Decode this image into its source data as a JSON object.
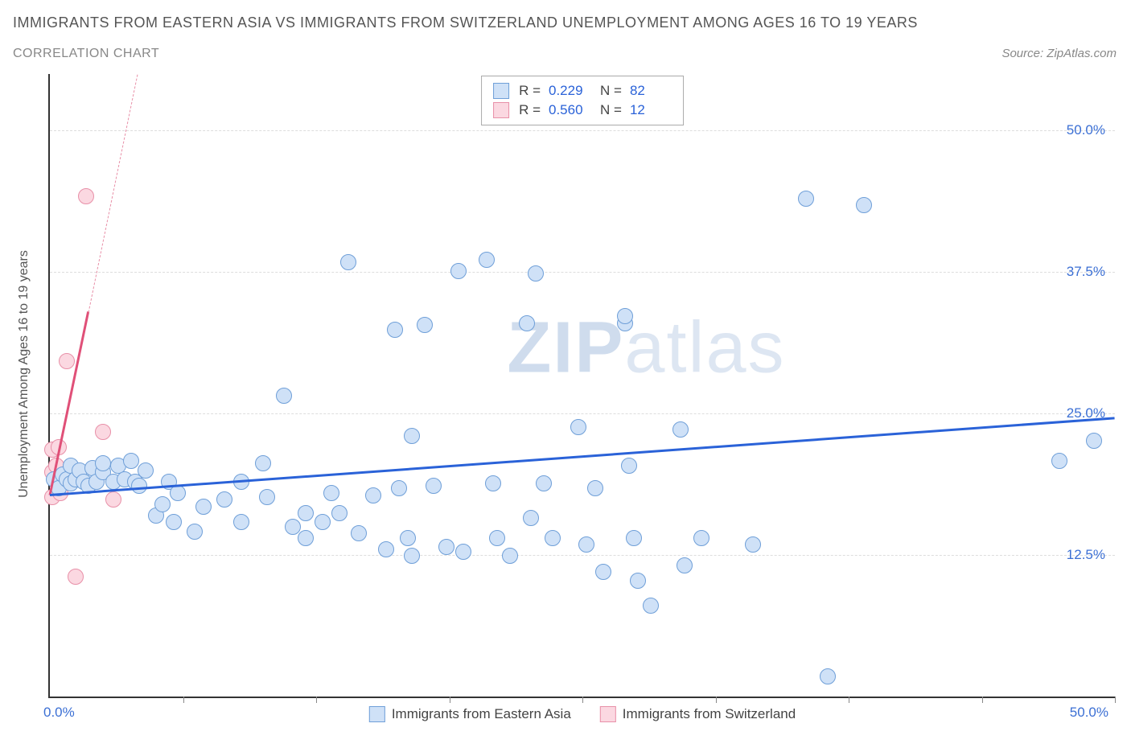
{
  "title_main": "IMMIGRANTS FROM EASTERN ASIA VS IMMIGRANTS FROM SWITZERLAND UNEMPLOYMENT AMONG AGES 16 TO 19 YEARS",
  "title_sub": "CORRELATION CHART",
  "source_label": "Source: ZipAtlas.com",
  "ylabel": "Unemployment Among Ages 16 to 19 years",
  "watermark_bold": "ZIP",
  "watermark_light": "atlas",
  "chart": {
    "type": "scatter",
    "xlim": [
      0,
      50
    ],
    "ylim": [
      0,
      55
    ],
    "xtick_label_min": "0.0%",
    "xtick_label_max": "50.0%",
    "xtick_positions": [
      0,
      6.25,
      12.5,
      18.75,
      25,
      31.25,
      37.5,
      43.75,
      50
    ],
    "ytick_labels": [
      {
        "v": 12.5,
        "t": "12.5%"
      },
      {
        "v": 25.0,
        "t": "25.0%"
      },
      {
        "v": 37.5,
        "t": "37.5%"
      },
      {
        "v": 50.0,
        "t": "50.0%"
      }
    ],
    "grid_color": "#dddddd",
    "background_color": "#ffffff",
    "marker_radius": 10,
    "marker_stroke_width": 1.5,
    "series_a": {
      "name": "Immigrants from Eastern Asia",
      "fill": "#cfe1f7",
      "stroke": "#6f9fd8",
      "R": "0.229",
      "N": "82",
      "trend": {
        "x1": 0,
        "y1": 17.8,
        "x2": 50,
        "y2": 24.6,
        "color": "#2a62d8",
        "width": 3
      },
      "points": [
        [
          0.2,
          19.2
        ],
        [
          0.4,
          18.4
        ],
        [
          0.6,
          19.6
        ],
        [
          0.8,
          19.2
        ],
        [
          1.0,
          18.8
        ],
        [
          1.0,
          20.4
        ],
        [
          1.2,
          19.2
        ],
        [
          1.4,
          20.0
        ],
        [
          1.6,
          19.0
        ],
        [
          1.8,
          18.6
        ],
        [
          2.0,
          20.2
        ],
        [
          2.2,
          19.0
        ],
        [
          2.5,
          19.8
        ],
        [
          2.5,
          20.6
        ],
        [
          3.0,
          19.0
        ],
        [
          3.2,
          20.4
        ],
        [
          3.5,
          19.2
        ],
        [
          3.8,
          20.8
        ],
        [
          4.0,
          19.0
        ],
        [
          4.2,
          18.6
        ],
        [
          4.5,
          20.0
        ],
        [
          5.0,
          16.0
        ],
        [
          5.3,
          17.0
        ],
        [
          5.6,
          19.0
        ],
        [
          5.8,
          15.4
        ],
        [
          6.0,
          18.0
        ],
        [
          6.8,
          14.6
        ],
        [
          7.2,
          16.8
        ],
        [
          8.2,
          17.4
        ],
        [
          9.0,
          19.0
        ],
        [
          9.0,
          15.4
        ],
        [
          10.0,
          20.6
        ],
        [
          10.2,
          17.6
        ],
        [
          11.0,
          26.6
        ],
        [
          11.4,
          15.0
        ],
        [
          12.0,
          14.0
        ],
        [
          12.0,
          16.2
        ],
        [
          12.8,
          15.4
        ],
        [
          13.2,
          18.0
        ],
        [
          13.6,
          16.2
        ],
        [
          14.0,
          38.4
        ],
        [
          14.5,
          14.4
        ],
        [
          15.2,
          17.8
        ],
        [
          15.8,
          13.0
        ],
        [
          16.2,
          32.4
        ],
        [
          16.4,
          18.4
        ],
        [
          16.8,
          14.0
        ],
        [
          17.0,
          12.4
        ],
        [
          17.0,
          23.0
        ],
        [
          17.6,
          32.8
        ],
        [
          18.0,
          18.6
        ],
        [
          18.6,
          13.2
        ],
        [
          19.2,
          37.6
        ],
        [
          19.4,
          12.8
        ],
        [
          20.5,
          38.6
        ],
        [
          20.8,
          18.8
        ],
        [
          21.0,
          14.0
        ],
        [
          21.6,
          12.4
        ],
        [
          22.4,
          33.0
        ],
        [
          22.6,
          15.8
        ],
        [
          22.8,
          37.4
        ],
        [
          23.2,
          18.8
        ],
        [
          23.6,
          14.0
        ],
        [
          24.8,
          23.8
        ],
        [
          25.2,
          13.4
        ],
        [
          25.6,
          18.4
        ],
        [
          26.0,
          11.0
        ],
        [
          27.0,
          33.0
        ],
        [
          27.0,
          33.6
        ],
        [
          27.2,
          20.4
        ],
        [
          27.4,
          14.0
        ],
        [
          27.6,
          10.2
        ],
        [
          28.2,
          8.0
        ],
        [
          29.6,
          23.6
        ],
        [
          29.8,
          11.6
        ],
        [
          30.6,
          14.0
        ],
        [
          33.0,
          13.4
        ],
        [
          35.5,
          44.0
        ],
        [
          36.5,
          1.8
        ],
        [
          38.2,
          43.4
        ],
        [
          47.4,
          20.8
        ],
        [
          49.0,
          22.6
        ]
      ]
    },
    "series_b": {
      "name": "Immigrants from Switzerland",
      "fill": "#fbd8e1",
      "stroke": "#e890a8",
      "R": "0.560",
      "N": "12",
      "trend_solid": {
        "x1": 0,
        "y1": 17.8,
        "x2": 1.8,
        "y2": 34.0,
        "color": "#e05078",
        "width": 3
      },
      "trend_dash": {
        "x1": 1.8,
        "y1": 34.0,
        "x2": 4.1,
        "y2": 55.0,
        "color": "#e890a8"
      },
      "points": [
        [
          0.1,
          17.6
        ],
        [
          0.1,
          19.8
        ],
        [
          0.1,
          21.8
        ],
        [
          0.3,
          19.2
        ],
        [
          0.3,
          20.4
        ],
        [
          0.4,
          22.0
        ],
        [
          0.5,
          18.0
        ],
        [
          0.8,
          29.6
        ],
        [
          1.2,
          10.6
        ],
        [
          1.7,
          44.2
        ],
        [
          2.5,
          23.4
        ],
        [
          3.0,
          17.4
        ]
      ]
    },
    "legend_top": {
      "R_label": "R =",
      "N_label": "N ="
    },
    "bottom_legend": [
      {
        "swatch": "a",
        "label": "Immigrants from Eastern Asia"
      },
      {
        "swatch": "b",
        "label": "Immigrants from Switzerland"
      }
    ]
  }
}
